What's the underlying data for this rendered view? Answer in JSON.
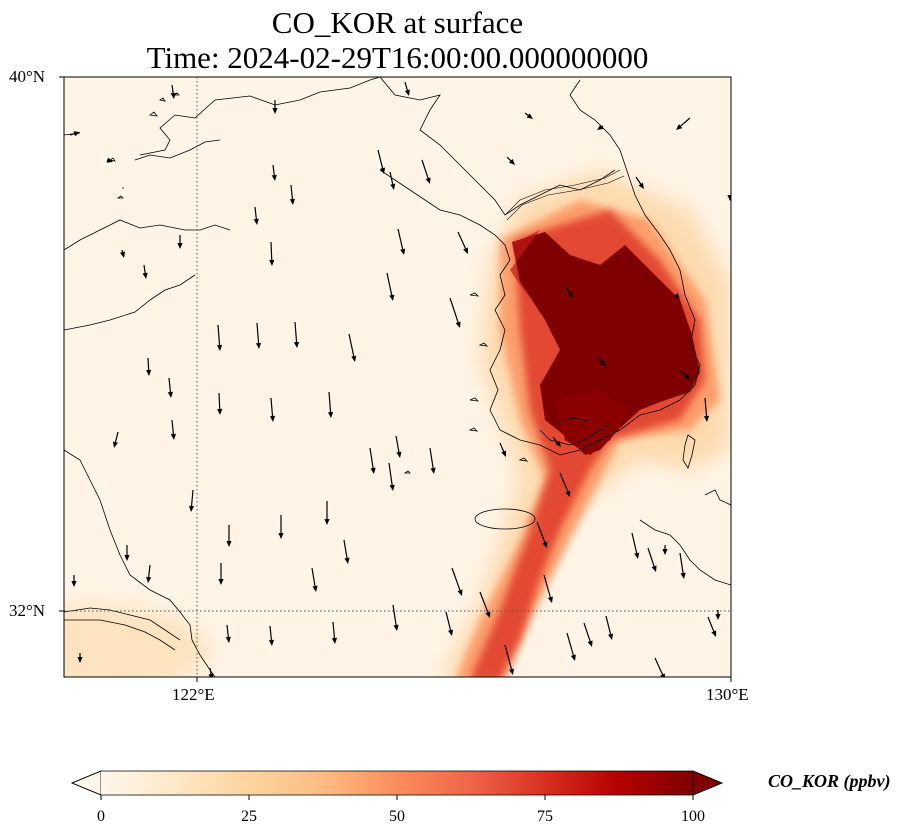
{
  "title": {
    "line1": "CO_KOR at surface",
    "line2": "Time: 2024-02-29T16:00:00.000000000"
  },
  "map": {
    "lon_range": [
      120,
      130
    ],
    "lat_range": [
      31,
      40
    ],
    "lon_ticks": [
      {
        "lon": 122,
        "label": "122°E"
      },
      {
        "lon": 130,
        "label": "130°E"
      }
    ],
    "lat_ticks": [
      {
        "lat": 40,
        "label": "40°N"
      },
      {
        "lat": 32,
        "label": "32°N"
      }
    ],
    "gridlines": "dotted",
    "coastlines": true,
    "wind_vectors": true,
    "wind_direction": "mostly southward (north wind)"
  },
  "colorbar": {
    "label": "CO_KOR (ppbv)",
    "colormap": "OrRd",
    "range": [
      0,
      100
    ],
    "extend": "both",
    "ticks": [
      "0",
      "25",
      "50",
      "75",
      "100"
    ],
    "colors": [
      "#fff7ec",
      "#fee8c8",
      "#fdd49e",
      "#fdbb84",
      "#fc8d59",
      "#ef6548",
      "#d7301f",
      "#b30000",
      "#7f0000"
    ]
  },
  "chart_data": {
    "type": "heatmap",
    "title": "CO_KOR at surface",
    "subtitle": "Time: 2024-02-29T16:00:00.000000000",
    "variable": "CO_KOR",
    "units": "ppbv",
    "xlim": [
      120,
      130
    ],
    "ylim": [
      31,
      40
    ],
    "features": [
      {
        "region": "Korean Peninsula (central/south)",
        "value_ppbv": ">100"
      },
      {
        "region": "Plume extending southwest over East China Sea",
        "value_ppbv": "50-80"
      },
      {
        "region": "Yellow Sea / China coast background",
        "value_ppbv": "0-10"
      }
    ]
  }
}
